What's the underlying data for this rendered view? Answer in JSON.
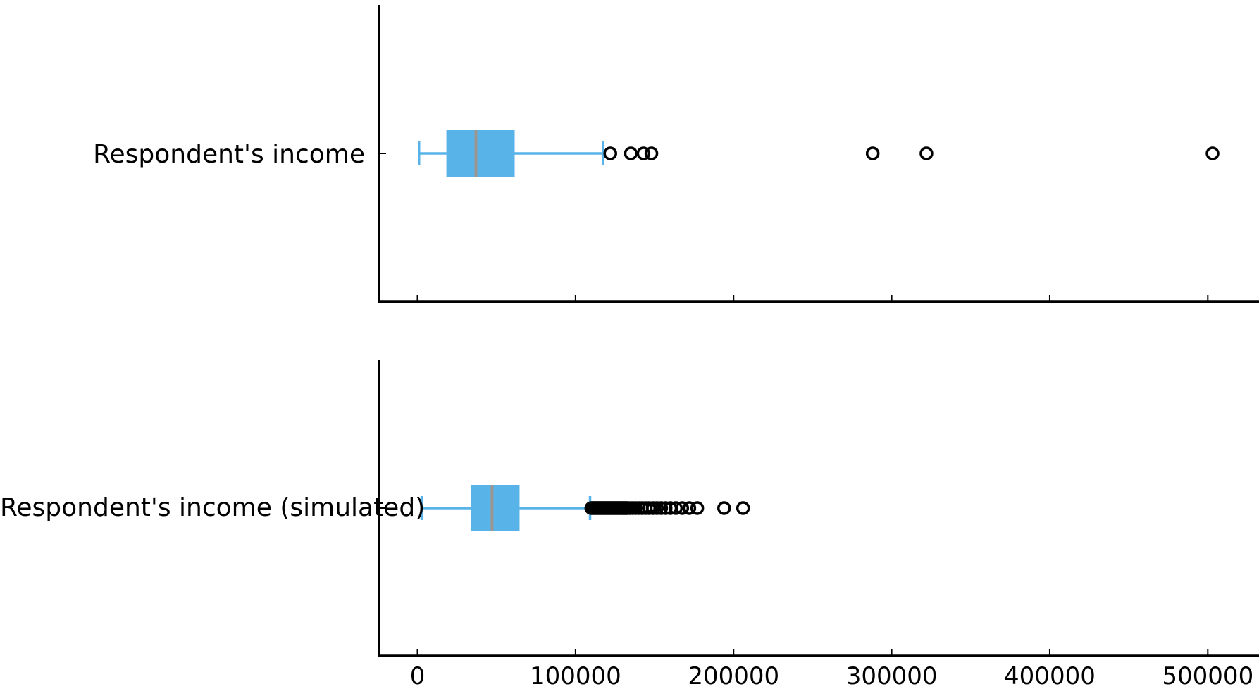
{
  "figure": {
    "background": "#ffffff",
    "axis_color": "#000000",
    "text_color": "#000000",
    "box_fill": "#57b3e8",
    "whisker_color": "#57b3e8",
    "median_color": "#9c9691",
    "flier_color": "#000000"
  },
  "chart_data": [
    {
      "type": "boxplot",
      "orientation": "horizontal",
      "label": "Respondent's income",
      "stats": {
        "whisker_low": 1000,
        "q1": 18300,
        "median": 37000,
        "q3": 61500,
        "whisker_high": 117500
      },
      "outliers": [
        122000,
        135000,
        143000,
        148000,
        288000,
        322000,
        503000
      ],
      "xlim": [
        -24300,
        532400
      ],
      "xticks": [
        0,
        100000,
        200000,
        300000,
        400000,
        500000
      ],
      "xtick_labels": [
        "0",
        "100000",
        "200000",
        "300000",
        "400000",
        "500000"
      ],
      "show_xtick_labels": false,
      "grid": false,
      "legend": false
    },
    {
      "type": "boxplot",
      "orientation": "horizontal",
      "label": "Respondent's income (simulated)",
      "stats": {
        "whisker_low": 2700,
        "q1": 34000,
        "median": 47200,
        "q3": 64600,
        "whisker_high": 109200
      },
      "outliers": [
        110000,
        110700,
        111400,
        112100,
        112800,
        113500,
        114200,
        114900,
        115600,
        116300,
        117000,
        117700,
        118400,
        119100,
        119800,
        120500,
        121200,
        121900,
        122600,
        123300,
        124000,
        124700,
        125400,
        126100,
        126800,
        127500,
        128200,
        128900,
        129600,
        130300,
        131000,
        131700,
        132400,
        133100,
        134500,
        136200,
        138000,
        140000,
        142000,
        144200,
        146500,
        149000,
        151500,
        154200,
        157000,
        160000,
        163500,
        167500,
        172000,
        177000,
        194000,
        206000
      ],
      "xlim": [
        -24300,
        532400
      ],
      "xticks": [
        0,
        100000,
        200000,
        300000,
        400000,
        500000
      ],
      "xtick_labels": [
        "0",
        "100000",
        "200000",
        "300000",
        "400000",
        "500000"
      ],
      "show_xtick_labels": true,
      "grid": false,
      "legend": false
    }
  ]
}
